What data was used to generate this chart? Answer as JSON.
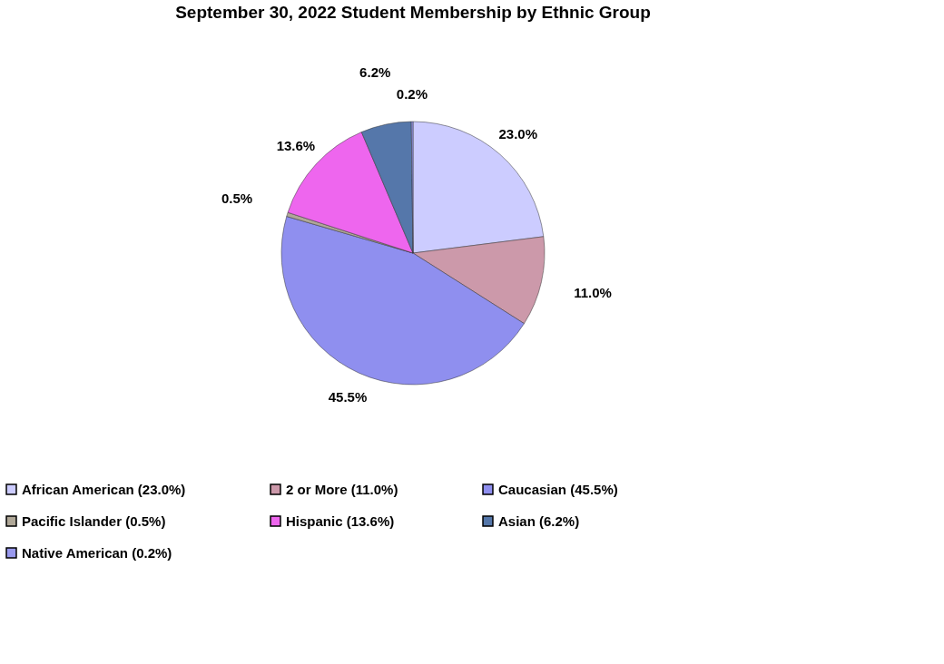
{
  "chart_data": {
    "type": "pie",
    "title": "September 30, 2022 Student  Membership by Ethnic Group",
    "categories": [
      "African American (23.0%)",
      "2 or More (11.0%)",
      "Caucasian (45.5%)",
      "Pacific Islander (0.5%)",
      "Hispanic (13.6%)",
      "Asian (6.2%)",
      "Native American (0.2%)"
    ],
    "values": [
      23.0,
      11.0,
      45.5,
      0.5,
      13.6,
      6.2,
      0.2
    ],
    "value_labels": [
      "23.0%",
      "11.0%",
      "45.5%",
      "0.5%",
      "13.6%",
      "6.2%",
      "0.2%"
    ],
    "colors": [
      "#ccccff",
      "#cc99aa",
      "#8f8fef",
      "#b0a898",
      "#ee66ee",
      "#5577aa",
      "#9999ee"
    ],
    "legend": "bottom"
  }
}
